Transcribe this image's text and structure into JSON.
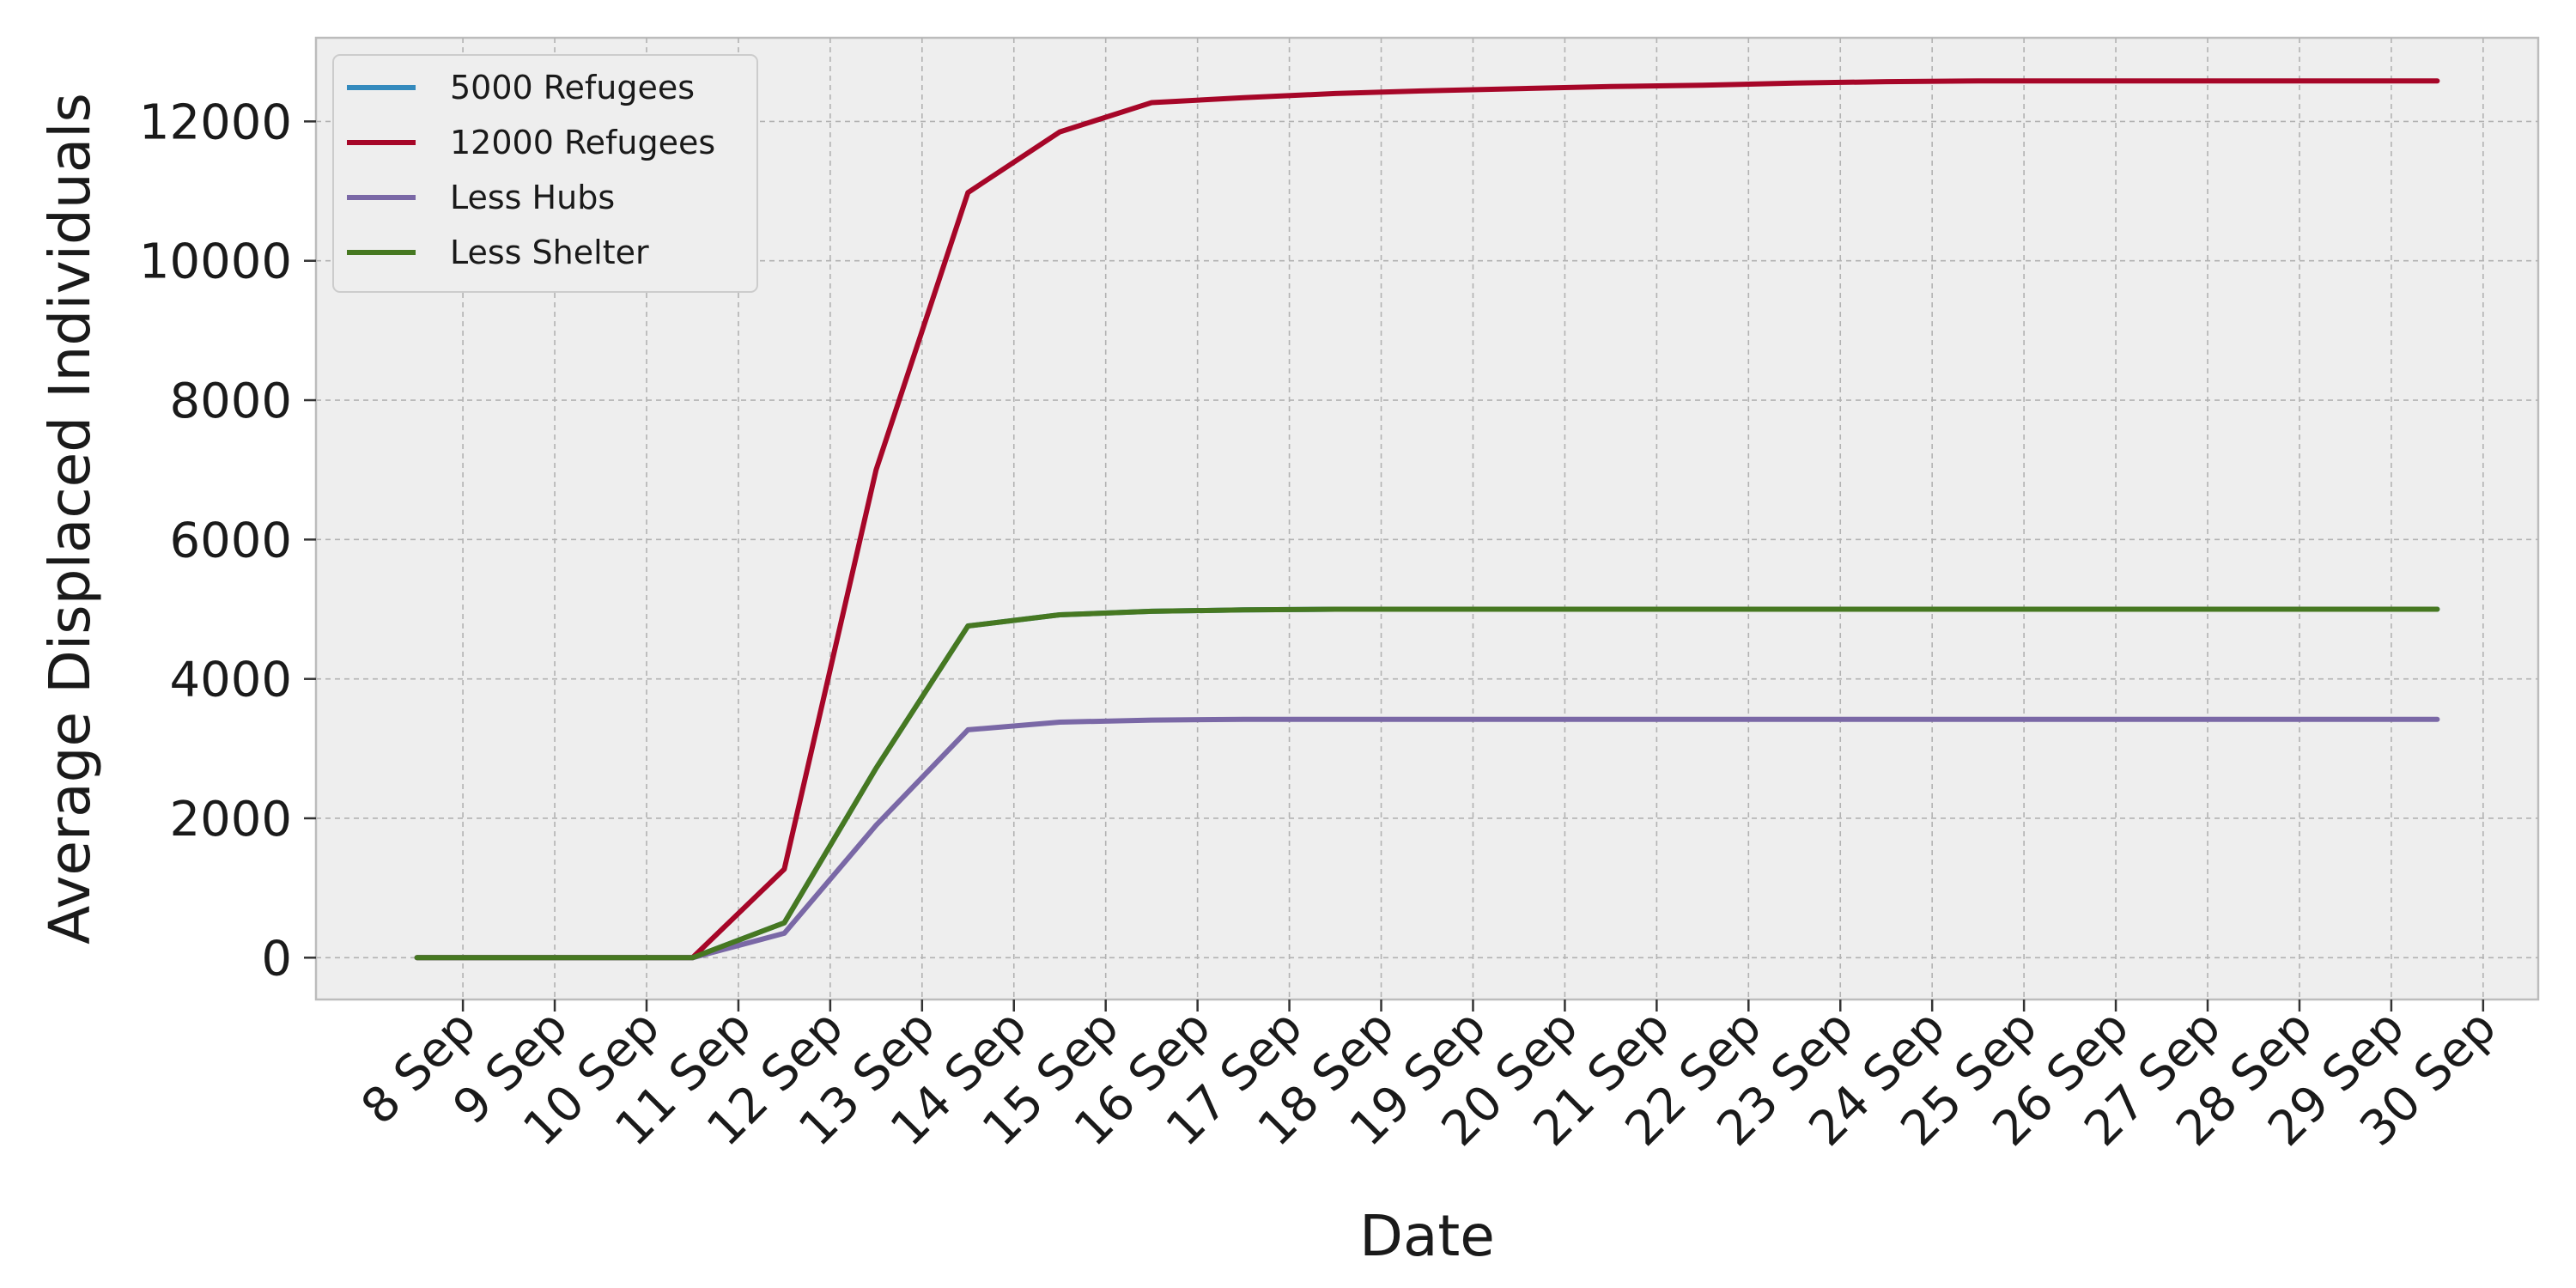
{
  "chart_data": {
    "type": "line",
    "title": "",
    "xlabel": "Date",
    "ylabel": "Average Displaced Individuals",
    "x_ticks": [
      "8 Sep",
      "9 Sep",
      "10 Sep",
      "11 Sep",
      "12 Sep",
      "13 Sep",
      "14 Sep",
      "15 Sep",
      "16 Sep",
      "17 Sep",
      "18 Sep",
      "19 Sep",
      "20 Sep",
      "21 Sep",
      "22 Sep",
      "23 Sep",
      "24 Sep",
      "25 Sep",
      "26 Sep",
      "27 Sep",
      "28 Sep",
      "29 Sep",
      "30 Sep"
    ],
    "y_ticks": [
      0,
      2000,
      4000,
      6000,
      8000,
      10000,
      12000
    ],
    "x_range": [
      "6.4 Sep",
      "30.6 Sep"
    ],
    "ylim": [
      -600,
      13200
    ],
    "grid": true,
    "legend_position": "top-left",
    "x": [
      "7.5 Sep",
      "8.5 Sep",
      "9.5 Sep",
      "10.5 Sep",
      "11.5 Sep",
      "12.5 Sep",
      "13.5 Sep",
      "14.5 Sep",
      "15.5 Sep",
      "16.5 Sep",
      "17.5 Sep",
      "18.5 Sep",
      "19.5 Sep",
      "20.5 Sep",
      "21.5 Sep",
      "22.5 Sep",
      "23.5 Sep",
      "24.5 Sep",
      "25.5 Sep",
      "26.5 Sep",
      "27.5 Sep",
      "28.5 Sep",
      "29.5 Sep"
    ],
    "series": [
      {
        "name": "5000 Refugees",
        "color": "#348ABD",
        "values": [
          0,
          0,
          0,
          0,
          500,
          2720,
          4760,
          4920,
          4970,
          4990,
          5000,
          5000,
          5000,
          5000,
          5000,
          5000,
          5000,
          5000,
          5000,
          5000,
          5000,
          5000,
          5000
        ]
      },
      {
        "name": "12000 Refugees",
        "color": "#A60628",
        "values": [
          0,
          0,
          0,
          0,
          1270,
          7000,
          10980,
          11850,
          12270,
          12340,
          12400,
          12440,
          12470,
          12500,
          12520,
          12550,
          12570,
          12580,
          12580,
          12580,
          12580,
          12580,
          12580
        ]
      },
      {
        "name": "Less Hubs",
        "color": "#7A68A6",
        "values": [
          0,
          0,
          0,
          0,
          350,
          1900,
          3270,
          3380,
          3410,
          3420,
          3420,
          3420,
          3420,
          3420,
          3420,
          3420,
          3420,
          3420,
          3420,
          3420,
          3420,
          3420,
          3420
        ]
      },
      {
        "name": "Less Shelter",
        "color": "#467821",
        "values": [
          0,
          0,
          0,
          0,
          500,
          2720,
          4760,
          4920,
          4970,
          4990,
          5000,
          5000,
          5000,
          5000,
          5000,
          5000,
          5000,
          5000,
          5000,
          5000,
          5000,
          5000,
          5000
        ]
      }
    ]
  }
}
